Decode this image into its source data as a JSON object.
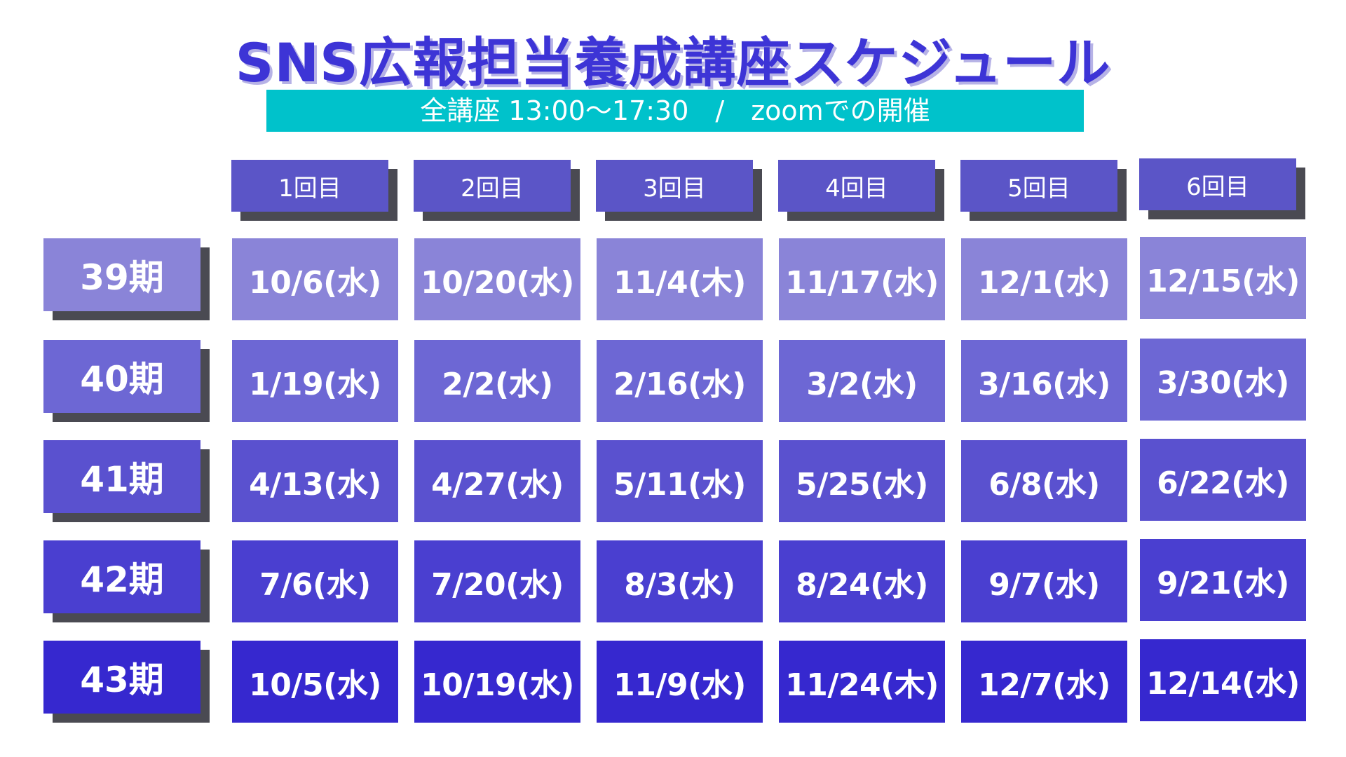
{
  "title": "SNS広報担当養成講座スケジュール",
  "subtitle": "全講座 13:00〜17:30　/　zoomでの開催",
  "columns": [
    "1回目",
    "2回目",
    "3回目",
    "4回目",
    "5回目",
    "6回目"
  ],
  "rows": [
    {
      "label": "39期",
      "dates": [
        "10/6(水)",
        "10/20(水)",
        "11/4(木)",
        "11/17(水)",
        "12/1(水)",
        "12/15(水)"
      ]
    },
    {
      "label": "40期",
      "dates": [
        "1/19(水)",
        "2/2(水)",
        "2/16(水)",
        "3/2(水)",
        "3/16(水)",
        "3/30(水)"
      ]
    },
    {
      "label": "41期",
      "dates": [
        "4/13(水)",
        "4/27(水)",
        "5/11(水)",
        "5/25(水)",
        "6/8(水)",
        "6/22(水)"
      ]
    },
    {
      "label": "42期",
      "dates": [
        "7/6(水)",
        "7/20(水)",
        "8/3(水)",
        "8/24(水)",
        "9/7(水)",
        "9/21(水)"
      ]
    },
    {
      "label": "43期",
      "dates": [
        "10/5(水)",
        "10/19(水)",
        "11/9(水)",
        "11/24(木)",
        "12/7(水)",
        "12/14(水)"
      ]
    }
  ],
  "colors": {
    "title": "#3d34d6",
    "subtitle_bg": "#00c2cb",
    "header_bg": "#5b55c7",
    "shadow": "#4a4a52",
    "row_shades": [
      "#8a84d8",
      "#6d67d4",
      "#5a51cf",
      "#4a3fd0",
      "#3628cf"
    ]
  }
}
